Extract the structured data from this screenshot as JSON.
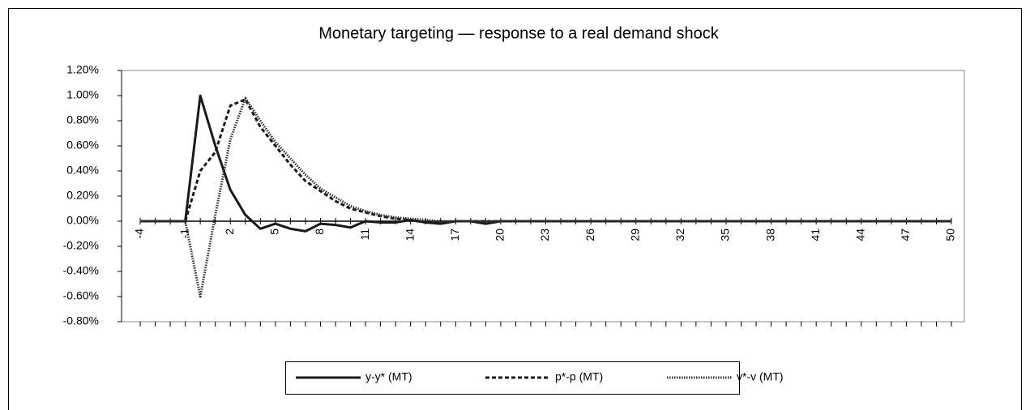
{
  "chart_data": {
    "type": "line",
    "title": "Monetary targeting — response to a real demand shock",
    "categories": [
      "-4",
      null,
      null,
      "-1",
      null,
      null,
      "2",
      null,
      null,
      "5",
      null,
      null,
      "8",
      null,
      null,
      "11",
      null,
      null,
      "14",
      null,
      null,
      "17",
      null,
      null,
      "20",
      null,
      null,
      "23",
      null,
      null,
      "26",
      null,
      null,
      "29",
      null,
      null,
      "32",
      null,
      null,
      "35",
      null,
      null,
      "38",
      null,
      null,
      "41",
      null,
      null,
      "44",
      null,
      null,
      "47",
      null,
      null,
      "50"
    ],
    "series": [
      {
        "name": "y-y* (MT)",
        "color": "#1a1a1a",
        "dash": "solid",
        "values": [
          0,
          0,
          0,
          0,
          1.0,
          0.6,
          0.25,
          0.05,
          -0.06,
          -0.02,
          -0.06,
          -0.08,
          -0.02,
          -0.03,
          -0.05,
          0,
          -0.01,
          -0.01,
          0.01,
          -0.01,
          -0.02,
          0,
          0,
          -0.02,
          0,
          0,
          0,
          0,
          0,
          0,
          0,
          0,
          0,
          0,
          0,
          0,
          0,
          0,
          0,
          0,
          0,
          0,
          0,
          0,
          0,
          0,
          0,
          0,
          0,
          0,
          0,
          0,
          0,
          0,
          0
        ]
      },
      {
        "name": "p*-p (MT)",
        "color": "#1a1a1a",
        "dash": "dashed",
        "values": [
          0,
          0,
          0,
          0,
          0.4,
          0.55,
          0.92,
          0.97,
          0.75,
          0.6,
          0.45,
          0.32,
          0.24,
          0.16,
          0.1,
          0.07,
          0.04,
          0.02,
          0.01,
          -0.01,
          -0.01,
          0,
          0,
          0,
          0,
          0,
          0,
          0,
          0,
          0,
          0,
          0,
          0,
          0,
          0,
          0,
          0,
          0,
          0,
          0,
          0,
          0,
          0,
          0,
          0,
          0,
          0,
          0,
          0,
          0,
          0,
          0,
          0,
          0,
          0
        ]
      },
      {
        "name": "v*-v (MT)",
        "color": "#333333",
        "dash": "dotted",
        "values": [
          0,
          0,
          0,
          0,
          -0.6,
          0.05,
          0.65,
          0.98,
          0.8,
          0.63,
          0.5,
          0.37,
          0.26,
          0.19,
          0.12,
          0.08,
          0.05,
          0.03,
          0.02,
          0.01,
          0,
          0,
          0,
          0,
          0,
          0,
          0,
          0,
          0,
          0,
          0,
          0,
          0,
          0,
          0,
          0,
          0,
          0,
          0,
          0,
          0,
          0,
          0,
          0,
          0,
          0,
          0,
          0,
          0,
          0,
          0,
          0,
          0,
          0,
          0
        ]
      }
    ],
    "ylim": [
      -0.8,
      1.2
    ],
    "yticks": [
      {
        "value": -0.8,
        "label": "-0.80%"
      },
      {
        "value": -0.6,
        "label": "-0.60%"
      },
      {
        "value": -0.4,
        "label": "-0.40%"
      },
      {
        "value": -0.2,
        "label": "-0.20%"
      },
      {
        "value": 0,
        "label": "0.00%"
      },
      {
        "value": 0.2,
        "label": "0.20%"
      },
      {
        "value": 0.4,
        "label": "0.40%"
      },
      {
        "value": 0.6,
        "label": "0.60%"
      },
      {
        "value": 0.8,
        "label": "0.80%"
      },
      {
        "value": 1.0,
        "label": "1.00%"
      },
      {
        "value": 1.2,
        "label": "1.20%"
      }
    ],
    "grid": false,
    "legend": "bottom"
  }
}
